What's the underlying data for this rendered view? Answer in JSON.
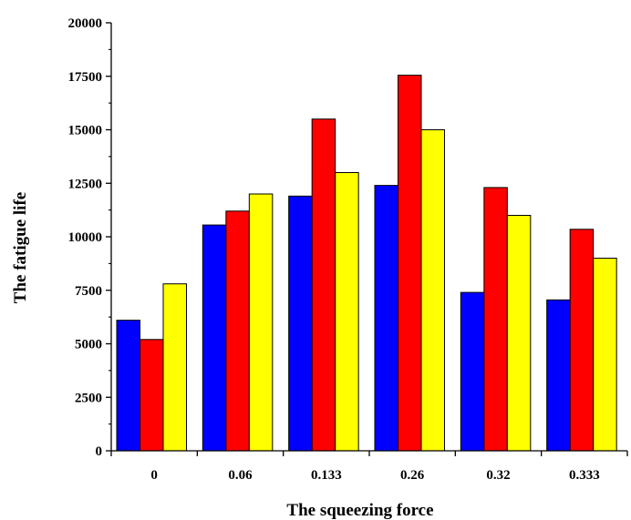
{
  "chart_data": {
    "type": "bar",
    "title": "",
    "xlabel": "The squeezing force",
    "ylabel": "The fatigue life",
    "categories": [
      "0",
      "0.06",
      "0.133",
      "0.26",
      "0.32",
      "0.333"
    ],
    "series": [
      {
        "color": "#0000ff",
        "values": [
          6100,
          10550,
          11900,
          12400,
          7400,
          7050
        ]
      },
      {
        "color": "#ff0000",
        "values": [
          5200,
          11200,
          15500,
          17550,
          12300,
          10350
        ]
      },
      {
        "color": "#ffff00",
        "values": [
          7800,
          12000,
          13000,
          15000,
          11000,
          9000
        ]
      }
    ],
    "ylim": [
      0,
      20000
    ],
    "yticks": [
      "0",
      "2500",
      "5000",
      "7500",
      "10000",
      "12500",
      "15000",
      "17500",
      "20000"
    ],
    "legend": false,
    "grid": false
  }
}
